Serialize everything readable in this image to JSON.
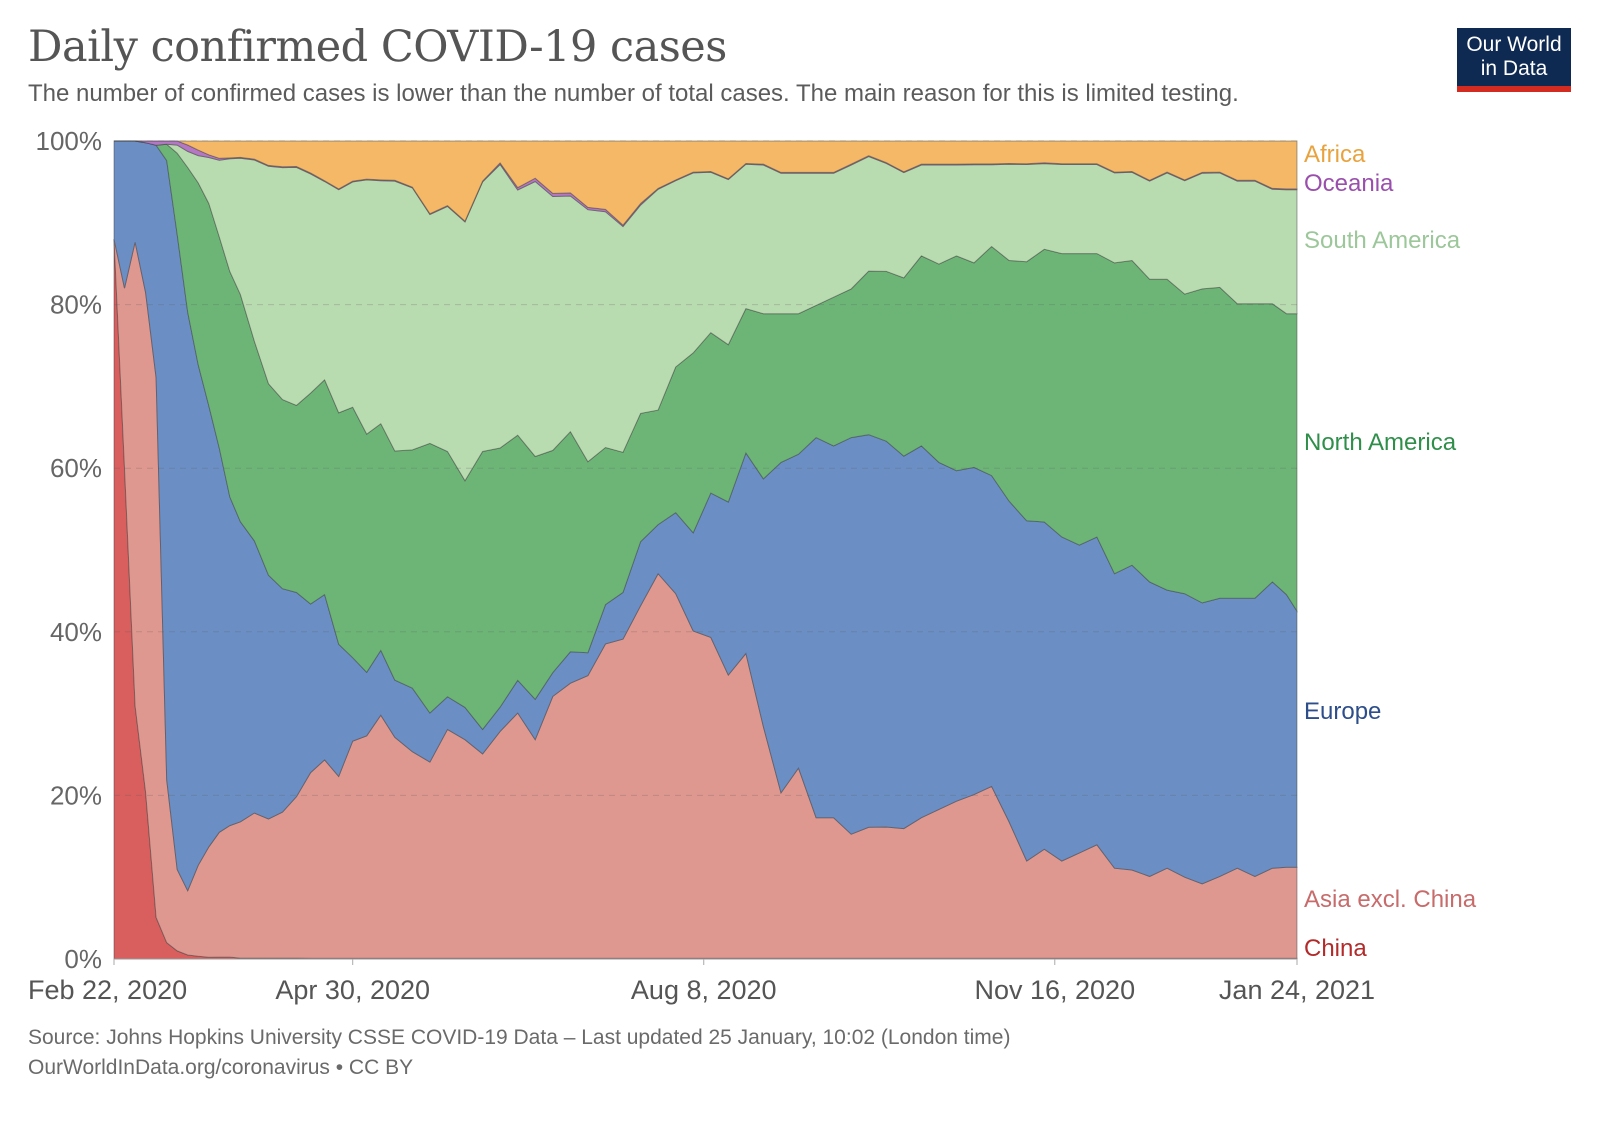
{
  "header": {
    "title": "Daily confirmed COVID-19 cases",
    "subtitle": "The number of confirmed cases is lower than the number of total cases. The main reason for this is limited testing.",
    "logo_line1": "Our World",
    "logo_line2": "in Data"
  },
  "footer": {
    "source": "Source: Johns Hopkins University CSSE COVID-19 Data – Last updated 25 January, 10:02 (London time)",
    "link": "OurWorldInData.org/coronavirus • CC BY"
  },
  "chart_data": {
    "type": "area",
    "stacked": true,
    "normalized": true,
    "title": "Daily confirmed COVID-19 cases",
    "xlabel": "",
    "ylabel": "",
    "ylim": [
      0,
      100
    ],
    "y_ticks": [
      "0%",
      "20%",
      "40%",
      "60%",
      "80%",
      "100%"
    ],
    "y_tick_values": [
      0,
      20,
      40,
      60,
      80,
      100
    ],
    "x_ticks": [
      "Feb 22, 2020",
      "Apr 30, 2020",
      "Aug 8, 2020",
      "Nov 16, 2020",
      "Jan 24, 2021"
    ],
    "x_tick_days": [
      0,
      68,
      168,
      268,
      337
    ],
    "x_range_days": [
      0,
      337
    ],
    "grid": true,
    "legend": "right",
    "x_days": [
      0,
      3,
      6,
      9,
      12,
      15,
      18,
      21,
      24,
      27,
      30,
      33,
      36,
      40,
      44,
      48,
      52,
      56,
      60,
      64,
      68,
      72,
      76,
      80,
      85,
      90,
      95,
      100,
      105,
      110,
      115,
      120,
      125,
      130,
      135,
      140,
      145,
      150,
      155,
      160,
      165,
      170,
      175,
      180,
      185,
      190,
      195,
      200,
      205,
      210,
      215,
      220,
      225,
      230,
      235,
      240,
      245,
      250,
      255,
      260,
      265,
      270,
      275,
      280,
      285,
      290,
      295,
      300,
      305,
      310,
      315,
      320,
      325,
      330,
      334,
      337
    ],
    "series": [
      {
        "name": "China",
        "color": "#d95f5f",
        "label_color": "#b22a2a",
        "values": [
          88,
          60,
          30,
          20,
          5,
          2,
          1,
          0.5,
          0.3,
          0.2,
          0.2,
          0.2,
          0.1,
          0.1,
          0.1,
          0.1,
          0.1,
          0.1,
          0.1,
          0.1,
          0.1,
          0.1,
          0.1,
          0.1,
          0.1,
          0.1,
          0.1,
          0.1,
          0.1,
          0.1,
          0.1,
          0.1,
          0.1,
          0.1,
          0.1,
          0.1,
          0.1,
          0.1,
          0.1,
          0.1,
          0.1,
          0.1,
          0.1,
          0.1,
          0.1,
          0.1,
          0.1,
          0.1,
          0.1,
          0.1,
          0.1,
          0.1,
          0.1,
          0.1,
          0.1,
          0.1,
          0.1,
          0.1,
          0.1,
          0.1,
          0.1,
          0.1,
          0.1,
          0.1,
          0.1,
          0.1,
          0.1,
          0.1,
          0.1,
          0.1,
          0.1,
          0.1,
          0.1,
          0.1,
          0.1,
          0.1
        ]
      },
      {
        "name": "Asia excl. China",
        "color": "#de9890",
        "label_color": "#c76b6b",
        "values": [
          0,
          22,
          55,
          60,
          65,
          20,
          10,
          8,
          10,
          12,
          13,
          14,
          15,
          16,
          16,
          17,
          19,
          22,
          24,
          22,
          26,
          28,
          30,
          27,
          26,
          24,
          28,
          27,
          25,
          28,
          30,
          27,
          33,
          35,
          37,
          40,
          41,
          44,
          47,
          45,
          40,
          40,
          36,
          38,
          28,
          20,
          23,
          17,
          17,
          15,
          16,
          17,
          16,
          17,
          18,
          19,
          20,
          21,
          17,
          12,
          14,
          12,
          13,
          14,
          11,
          11,
          10,
          11,
          10,
          9,
          10,
          11,
          10,
          11,
          11,
          11
        ]
      },
      {
        "name": "Europe",
        "color": "#6b8fc4",
        "label_color": "#2d4e8a",
        "values": [
          12,
          18,
          12,
          18,
          28,
          76,
          78,
          72,
          55,
          48,
          40,
          35,
          33,
          30,
          28,
          26,
          24,
          20,
          20,
          16,
          10,
          8,
          8,
          7,
          8,
          6,
          4,
          4,
          3,
          3,
          4,
          5,
          3,
          4,
          3,
          5,
          6,
          8,
          6,
          10,
          12,
          18,
          22,
          25,
          30,
          40,
          38,
          46,
          45,
          48,
          48,
          50,
          46,
          45,
          42,
          40,
          40,
          38,
          40,
          42,
          42,
          40,
          38,
          38,
          36,
          38,
          36,
          34,
          35,
          34,
          34,
          33,
          34,
          35,
          33,
          31
        ]
      },
      {
        "name": "North America",
        "color": "#6db577",
        "label_color": "#2f8f4a",
        "values": [
          0,
          0,
          0,
          0,
          0,
          2,
          10,
          18,
          20,
          22,
          22,
          24,
          25,
          22,
          22,
          22,
          22,
          25,
          26,
          28,
          30,
          30,
          28,
          28,
          30,
          33,
          30,
          28,
          34,
          32,
          30,
          30,
          28,
          28,
          25,
          20,
          18,
          16,
          14,
          18,
          22,
          20,
          20,
          18,
          20,
          18,
          17,
          16,
          18,
          18,
          20,
          22,
          22,
          23,
          24,
          26,
          25,
          28,
          30,
          32,
          35,
          35,
          36,
          35,
          38,
          38,
          37,
          38,
          37,
          38,
          38,
          36,
          36,
          34,
          34,
          36
        ]
      },
      {
        "name": "South America",
        "color": "#b9dbb0",
        "label_color": "#9cc79a",
        "values": [
          0,
          0,
          0,
          0,
          0,
          0,
          1,
          2,
          3,
          5,
          8,
          12,
          15,
          20,
          25,
          27,
          28,
          26,
          24,
          27,
          27,
          32,
          30,
          33,
          33,
          28,
          30,
          32,
          33,
          35,
          30,
          34,
          32,
          30,
          33,
          30,
          29,
          26,
          27,
          23,
          22,
          20,
          21,
          18,
          18,
          17,
          17,
          16,
          15,
          15,
          14,
          14,
          13,
          11,
          12,
          11,
          12,
          10,
          12,
          12,
          11,
          11,
          11,
          11,
          11,
          11,
          12,
          13,
          14,
          14,
          14,
          15,
          15,
          14,
          15,
          15
        ]
      },
      {
        "name": "Oceania",
        "color": "#b477c4",
        "label_color": "#9a4fad",
        "values": [
          0,
          0,
          0,
          0.2,
          0.5,
          0.4,
          0.5,
          0.8,
          0.6,
          0.3,
          0.2,
          0.1,
          0.1,
          0.1,
          0.1,
          0.1,
          0.1,
          0.1,
          0.1,
          0.1,
          0.1,
          0.1,
          0.1,
          0.1,
          0.1,
          0.1,
          0.1,
          0.1,
          0.1,
          0.2,
          0.3,
          0.4,
          0.4,
          0.4,
          0.3,
          0.3,
          0.2,
          0.2,
          0.1,
          0.1,
          0.1,
          0.1,
          0.1,
          0.1,
          0.1,
          0.1,
          0.1,
          0.1,
          0.1,
          0.1,
          0.1,
          0.1,
          0.1,
          0.1,
          0.1,
          0.1,
          0.1,
          0.1,
          0.1,
          0.1,
          0.1,
          0.1,
          0.1,
          0.1,
          0.1,
          0.1,
          0.1,
          0.1,
          0.1,
          0.1,
          0.1,
          0.1,
          0.1,
          0.1,
          0.1,
          0.1
        ]
      },
      {
        "name": "Africa",
        "color": "#f5b866",
        "label_color": "#e8a33e",
        "values": [
          0,
          0,
          0,
          0,
          0,
          0,
          0,
          0.5,
          1,
          1.5,
          1.8,
          1.8,
          1.8,
          2,
          2.8,
          3,
          3,
          3.8,
          4.8,
          5.8,
          4.8,
          4.8,
          4.8,
          4.8,
          5.8,
          8.9,
          7.9,
          9.9,
          4.9,
          2.7,
          5.7,
          4.6,
          6.6,
          6.6,
          8.7,
          8.7,
          10.8,
          7.8,
          5.8,
          4.8,
          3.8,
          3.8,
          4.8,
          2.8,
          2.8,
          3.8,
          3.8,
          3.8,
          3.8,
          2.8,
          1.8,
          2.8,
          3.8,
          2.8,
          2.8,
          2.8,
          2.8,
          2.8,
          2.8,
          2.8,
          2.8,
          2.8,
          2.8,
          2.8,
          3.8,
          3.8,
          4.8,
          3.8,
          4.8,
          3.8,
          3.8,
          4.8,
          4.8,
          5.8,
          5.8,
          5.8
        ]
      }
    ]
  }
}
